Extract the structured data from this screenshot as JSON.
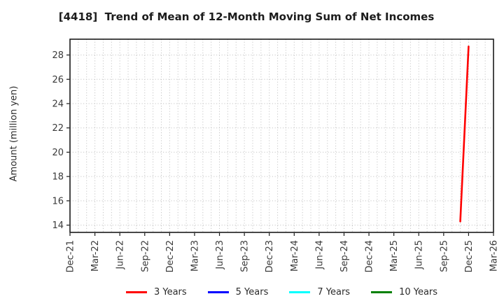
{
  "chart_data": {
    "type": "line",
    "title": "[4418]  Trend of Mean of 12-Month Moving Sum of Net Incomes",
    "ylabel": "Amount (million yen)",
    "ylim": [
      13.4,
      29.3
    ],
    "yticks": [
      14,
      16,
      18,
      20,
      22,
      24,
      26,
      28
    ],
    "x_tick_labels": [
      "Dec-21",
      "Mar-22",
      "Jun-22",
      "Sep-22",
      "Dec-22",
      "Mar-23",
      "Jun-23",
      "Sep-23",
      "Dec-23",
      "Mar-24",
      "Jun-24",
      "Sep-24",
      "Dec-24",
      "Mar-25",
      "Jun-25",
      "Sep-25",
      "Dec-25",
      "Mar-26"
    ],
    "months_between_ticks": 3,
    "months_total": 51,
    "grid": {
      "show": true,
      "style": "dotted",
      "color": "#c6c6c6"
    },
    "frame_color": "#1a1a1a",
    "tick_label_color": "#3a3a3a",
    "legend_position": "bottom-center",
    "series": [
      {
        "name": "3 Years",
        "color": "#ff0000",
        "points": [
          {
            "month": "Nov-25",
            "month_index": 47,
            "value": 14.3
          },
          {
            "month": "Dec-25",
            "month_index": 48,
            "value": 28.7
          }
        ]
      },
      {
        "name": "5 Years",
        "color": "#0000ff",
        "points": []
      },
      {
        "name": "7 Years",
        "color": "#00ffff",
        "points": []
      },
      {
        "name": "10 Years",
        "color": "#008000",
        "points": []
      }
    ]
  }
}
